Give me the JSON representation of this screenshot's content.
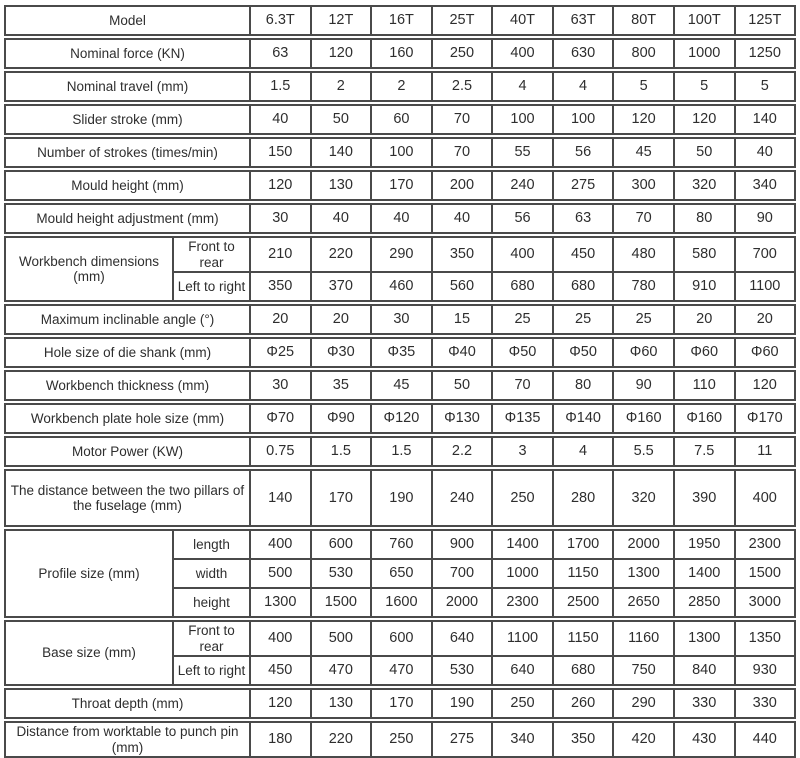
{
  "page": {
    "background": "#ffffff",
    "border_color": "#4a4a4a",
    "text_color": "#2e2e2e"
  },
  "table": {
    "description": "Press machine specification table",
    "blocks": [
      {
        "header": true,
        "label": "Model",
        "values": [
          "6.3T",
          "12T",
          "16T",
          "25T",
          "40T",
          "63T",
          "80T",
          "100T",
          "125T"
        ]
      },
      {
        "label": "Nominal force (KN)",
        "values": [
          "63",
          "120",
          "160",
          "250",
          "400",
          "630",
          "800",
          "1000",
          "1250"
        ]
      },
      {
        "label": "Nominal travel (mm)",
        "values": [
          "1.5",
          "2",
          "2",
          "2.5",
          "4",
          "4",
          "5",
          "5",
          "5"
        ]
      },
      {
        "label": "Slider stroke (mm)",
        "values": [
          "40",
          "50",
          "60",
          "70",
          "100",
          "100",
          "120",
          "120",
          "140"
        ]
      },
      {
        "label": "Number of strokes (times/min)",
        "values": [
          "150",
          "140",
          "100",
          "70",
          "55",
          "56",
          "45",
          "50",
          "40"
        ]
      },
      {
        "label": "Mould height (mm)",
        "values": [
          "120",
          "130",
          "170",
          "200",
          "240",
          "275",
          "300",
          "320",
          "340"
        ]
      },
      {
        "label": "Mould height adjustment (mm)",
        "values": [
          "30",
          "40",
          "40",
          "40",
          "56",
          "63",
          "70",
          "80",
          "90"
        ]
      },
      {
        "label": "Workbench dimensions (mm)",
        "subrows": [
          {
            "label": "Front to rear",
            "values": [
              "210",
              "220",
              "290",
              "350",
              "400",
              "450",
              "480",
              "580",
              "700"
            ]
          },
          {
            "label": "Left to right",
            "values": [
              "350",
              "370",
              "460",
              "560",
              "680",
              "680",
              "780",
              "910",
              "1100"
            ]
          }
        ]
      },
      {
        "label": "Maximum inclinable angle (°)",
        "values": [
          "20",
          "20",
          "30",
          "15",
          "25",
          "25",
          "25",
          "20",
          "20"
        ]
      },
      {
        "label": "Hole size of die shank (mm)",
        "values": [
          "Φ25",
          "Φ30",
          "Φ35",
          "Φ40",
          "Φ50",
          "Φ50",
          "Φ60",
          "Φ60",
          "Φ60"
        ]
      },
      {
        "label": "Workbench thickness (mm)",
        "values": [
          "30",
          "35",
          "45",
          "50",
          "70",
          "80",
          "90",
          "110",
          "120"
        ]
      },
      {
        "label": "Workbench plate hole size (mm)",
        "values": [
          "Φ70",
          "Φ90",
          "Φ120",
          "Φ130",
          "Φ135",
          "Φ140",
          "Φ160",
          "Φ160",
          "Φ170"
        ]
      },
      {
        "label": "Motor Power (KW)",
        "values": [
          "0.75",
          "1.5",
          "1.5",
          "2.2",
          "3",
          "4",
          "5.5",
          "7.5",
          "11"
        ]
      },
      {
        "tall": true,
        "label": "The distance between the two pillars of the fuselage (mm)",
        "values": [
          "140",
          "170",
          "190",
          "240",
          "250",
          "280",
          "320",
          "390",
          "400"
        ]
      },
      {
        "label": "Profile size (mm)",
        "subrows": [
          {
            "label": "length",
            "values": [
              "400",
              "600",
              "760",
              "900",
              "1400",
              "1700",
              "2000",
              "1950",
              "2300"
            ]
          },
          {
            "label": "width",
            "values": [
              "500",
              "530",
              "650",
              "700",
              "1000",
              "1150",
              "1300",
              "1400",
              "1500"
            ]
          },
          {
            "label": "height",
            "values": [
              "1300",
              "1500",
              "1600",
              "2000",
              "2300",
              "2500",
              "2650",
              "2850",
              "3000"
            ]
          }
        ]
      },
      {
        "label": "Base size (mm)",
        "subrows": [
          {
            "label": "Front to rear",
            "values": [
              "400",
              "500",
              "600",
              "640",
              "1100",
              "1150",
              "1160",
              "1300",
              "1350"
            ]
          },
          {
            "label": "Left to right",
            "values": [
              "450",
              "470",
              "470",
              "530",
              "640",
              "680",
              "750",
              "840",
              "930"
            ]
          }
        ]
      },
      {
        "label": "Throat depth (mm)",
        "values": [
          "120",
          "130",
          "170",
          "190",
          "250",
          "260",
          "290",
          "330",
          "330"
        ]
      },
      {
        "label": "Distance from worktable to punch pin (mm)",
        "values": [
          "180",
          "220",
          "250",
          "275",
          "340",
          "350",
          "420",
          "430",
          "440"
        ]
      }
    ]
  }
}
